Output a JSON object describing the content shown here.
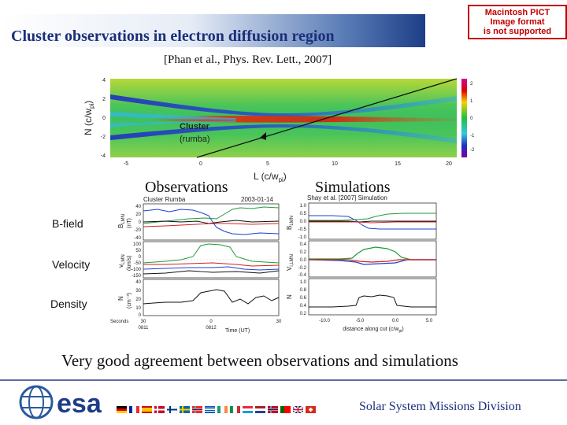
{
  "title": "Cluster observations in electron diffusion region",
  "citation": "[Phan et al., Phys. Rev. Lett., 2007]",
  "image_notice": [
    "Macintosh PICT",
    "Image format",
    "is not supported"
  ],
  "colormap": {
    "ylabel": "N (c/w",
    "ylabel_sub": "pi",
    "ylabel_end": ")",
    "xlabel": "L (c/w",
    "xlabel_sub": "pi",
    "xlabel_end": ")",
    "yticks": [
      "4",
      "2",
      "0",
      "-2",
      "-4"
    ],
    "xticks": [
      "-5",
      "0",
      "5",
      "10",
      "15",
      "20"
    ],
    "colorbar_ticks": [
      "2",
      "1",
      "0",
      "-1",
      "-2"
    ],
    "annotation_line1": "Cluster",
    "annotation_line2": "(rumba)"
  },
  "labels": {
    "observations": "Observations",
    "simulations": "Simulations",
    "bfield": "B-field",
    "velocity": "Velocity",
    "density": "Density"
  },
  "obs_plot": {
    "header_left": "Cluster Rumba",
    "header_right": "2003-01-14",
    "ylabel_b": "B",
    "ylabel_b_sub": "LMN",
    "ylabel_b_unit": "(nT)",
    "ylabel_v": "v",
    "ylabel_v_sub": "LMN",
    "ylabel_v_unit": "(km/s)",
    "ylabel_n": "N",
    "ylabel_n_unit": "(cm⁻³)",
    "b_ticks": [
      "40",
      "20",
      "0",
      "-20",
      "-40"
    ],
    "v_ticks": [
      "100",
      "50",
      "0",
      "-50",
      "-100",
      "-150"
    ],
    "n_ticks": [
      "40",
      "30",
      "20",
      "10",
      "0"
    ],
    "x_ticks_top": [
      "Seconds",
      "30",
      "0",
      "30"
    ],
    "x_ticks_bottom": [
      "0811",
      "0812"
    ],
    "xlabel": "Time (UT)"
  },
  "sim_plot": {
    "header": "Shay et al. [2007] Simulation",
    "ylabel_b": "B",
    "ylabel_b_sub": "LMN",
    "ylabel_v": "V",
    "ylabel_v_sub": "i,LMN",
    "ylabel_n": "N",
    "b_ticks": [
      "1.0",
      "0.5",
      "0.0",
      "-0.5",
      "-1.0"
    ],
    "v_ticks": [
      "0.4",
      "0.2",
      "0.0",
      "-0.2",
      "-0.4"
    ],
    "n_ticks": [
      "1.0",
      "0.8",
      "0.6",
      "0.4",
      "0.2"
    ],
    "x_ticks": [
      "-10.0",
      "-5.0",
      "0.0",
      "5.0"
    ],
    "xlabel": "distance along cut (c/w",
    "xlabel_sub": "pi",
    "xlabel_end": ")"
  },
  "conclusion": "Very good agreement between observations and simulations",
  "footer": {
    "logo_text": "esa",
    "division": "Solar System Missions Division"
  },
  "colors": {
    "title": "#1b2f7a",
    "bz": "#000000",
    "bl": "#1f3fcf",
    "bm": "#1f9a3a",
    "vn": "#d42020"
  }
}
